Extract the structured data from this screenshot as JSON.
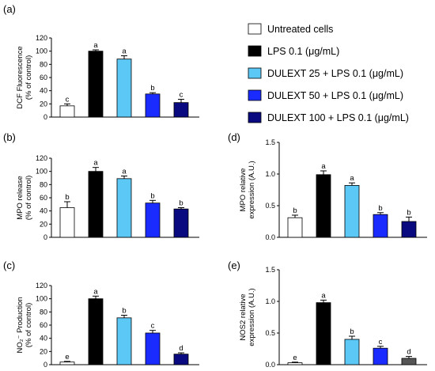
{
  "colors": {
    "untreated": "#ffffff",
    "lps": "#000000",
    "d25": "#5bc8f5",
    "d50": "#1a2bff",
    "d100": "#0a0a80",
    "d100_gray": "#555555"
  },
  "legend": [
    {
      "label": "Untreated cells",
      "color": "#ffffff"
    },
    {
      "label": "LPS 0.1 (μg/mL)",
      "color": "#000000"
    },
    {
      "label": "DULEXT 25 + LPS 0.1 (μg/mL)",
      "color": "#5bc8f5"
    },
    {
      "label": "DULEXT 50 + LPS  0.1 (μg/mL)",
      "color": "#1a2bff"
    },
    {
      "label": "DULEXT 100 + LPS 0.1 (μg/mL)",
      "color": "#0a0a80"
    }
  ],
  "chart_data": [
    {
      "panel": "(a)",
      "type": "bar",
      "ylabel": [
        "DCF Fluorescence",
        "(% of control)"
      ],
      "ylim": [
        0,
        120
      ],
      "yticks": [
        "0",
        "20",
        "40",
        "60",
        "80",
        "100",
        "120"
      ],
      "categories": [
        "Untreated cells",
        "LPS 0.1 (μg/mL)",
        "DULEXT 25 + LPS 0.1 (μg/mL)",
        "DULEXT 50 + LPS  0.1 (μg/mL)",
        "DULEXT 100 + LPS 0.1 (μg/mL)"
      ],
      "values": [
        17,
        100,
        88,
        35,
        22
      ],
      "errors": [
        3,
        2,
        5,
        2,
        5
      ],
      "letters": [
        "c",
        "a",
        "a",
        "b",
        "c"
      ]
    },
    {
      "panel": "(b)",
      "type": "bar",
      "ylabel": [
        "MPO release",
        "(% of control)"
      ],
      "ylim": [
        0,
        120
      ],
      "yticks": [
        "0",
        "20",
        "40",
        "60",
        "80",
        "100",
        "120"
      ],
      "categories": [
        "Untreated cells",
        "LPS 0.1 (μg/mL)",
        "DULEXT 25 + LPS 0.1 (μg/mL)",
        "DULEXT 50 + LPS  0.1 (μg/mL)",
        "DULEXT 100 + LPS 0.1 (μg/mL)"
      ],
      "values": [
        45,
        100,
        89,
        52,
        43
      ],
      "errors": [
        9,
        6,
        4,
        4,
        2
      ],
      "letters": [
        "b",
        "a",
        "a",
        "b",
        "b"
      ]
    },
    {
      "panel": "(c)",
      "type": "bar",
      "ylabel": [
        "NO₂⁻ Production",
        "(% of control)"
      ],
      "ylim": [
        0,
        120
      ],
      "yticks": [
        "0",
        "20",
        "40",
        "60",
        "80",
        "100",
        "120"
      ],
      "categories": [
        "Untreated cells",
        "LPS 0.1 (μg/mL)",
        "DULEXT 25 + LPS 0.1 (μg/mL)",
        "DULEXT 50 + LPS  0.1 (μg/mL)",
        "DULEXT 100 + LPS 0.1 (μg/mL)"
      ],
      "values": [
        4,
        100,
        71,
        48,
        16
      ],
      "errors": [
        1,
        4,
        4,
        4,
        2
      ],
      "letters": [
        "e",
        "a",
        "b",
        "c",
        "d"
      ]
    },
    {
      "panel": "(d)",
      "type": "bar",
      "ylabel": [
        "MPO relative",
        "expression (A.U.)"
      ],
      "ylim": [
        0,
        1.5
      ],
      "yticks": [
        "0.0",
        "0.5",
        "1.0",
        "1.5"
      ],
      "categories": [
        "Untreated cells",
        "LPS 0.1 (μg/mL)",
        "DULEXT 25 + LPS 0.1 (μg/mL)",
        "DULEXT 50 + LPS  0.1 (μg/mL)",
        "DULEXT 100 + LPS 0.1 (μg/mL)"
      ],
      "values": [
        0.31,
        0.99,
        0.82,
        0.36,
        0.25
      ],
      "errors": [
        0.04,
        0.06,
        0.04,
        0.03,
        0.07
      ],
      "letters": [
        "b",
        "a",
        "a",
        "b",
        "b"
      ]
    },
    {
      "panel": "(e)",
      "type": "bar",
      "ylabel": [
        "NOS2 relative",
        "expression (A.U.)"
      ],
      "ylim": [
        0,
        1.5
      ],
      "yticks": [
        "0.0",
        "0.5",
        "1.0",
        "1.5"
      ],
      "categories": [
        "Untreated cells",
        "LPS 0.1 (μg/mL)",
        "DULEXT 25 + LPS 0.1 (μg/mL)",
        "DULEXT 50 + LPS  0.1 (μg/mL)",
        "DULEXT 100 + LPS 0.1 (μg/mL)"
      ],
      "values": [
        0.03,
        0.98,
        0.4,
        0.26,
        0.1
      ],
      "errors": [
        0.01,
        0.04,
        0.05,
        0.03,
        0.03
      ],
      "letters": [
        "e",
        "a",
        "b",
        "c",
        "d"
      ],
      "last_bar_color": "#555555"
    }
  ]
}
